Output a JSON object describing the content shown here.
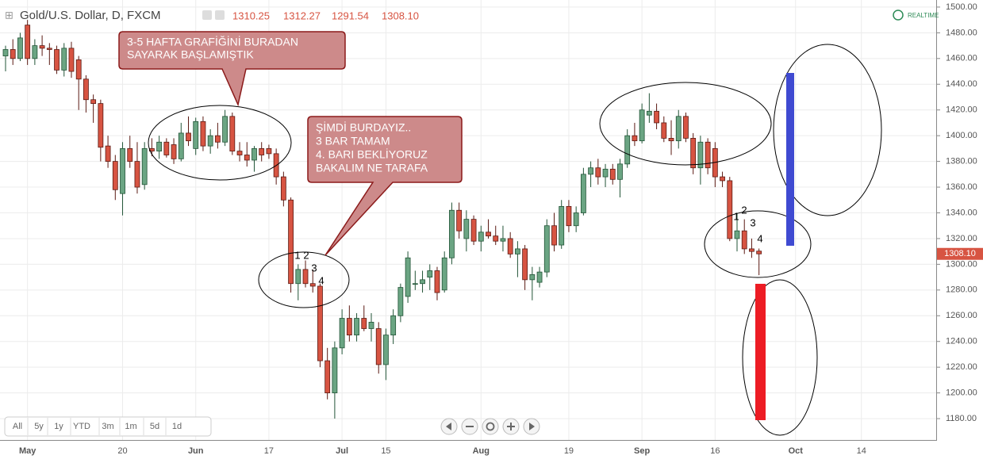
{
  "header": {
    "symbol": "Gold/U.S. Dollar, D, FXCM",
    "open": "1310.25",
    "high": "1312.27",
    "low": "1291.54",
    "close": "1308.10",
    "realtime": "REALTIME"
  },
  "chart_data": {
    "type": "candlestick",
    "up_color": "#6ba583",
    "down_color": "#d75442",
    "grid": true,
    "categories": [
      null,
      null,
      null,
      "May",
      null,
      null,
      null,
      null,
      null,
      null,
      null,
      null,
      null,
      null,
      null,
      null,
      "20",
      null,
      null,
      null,
      null,
      null,
      null,
      null,
      null,
      null,
      "Jun",
      null,
      null,
      null,
      null,
      null,
      null,
      null,
      null,
      null,
      "17",
      null,
      null,
      null,
      null,
      null,
      null,
      null,
      null,
      null,
      "Jul",
      null,
      null,
      null,
      null,
      null,
      "15",
      null,
      null,
      null,
      null,
      null,
      null,
      null,
      null,
      null,
      null,
      null,
      null,
      "Aug",
      null,
      null,
      null,
      null,
      null,
      null,
      null,
      null,
      null,
      null,
      null,
      "19",
      null,
      null,
      null,
      null,
      null,
      null,
      null,
      null,
      null,
      "Sep",
      null,
      null,
      null,
      null,
      null,
      null,
      null,
      null,
      null,
      "16",
      null,
      null,
      null,
      null,
      null,
      null,
      null,
      null,
      null,
      null,
      "Oct",
      null,
      null,
      null,
      null,
      null,
      null,
      null,
      null,
      "14",
      null,
      null,
      null,
      null,
      null,
      null
    ],
    "ohlc": [
      [
        1462,
        1470,
        1450,
        1467
      ],
      [
        1467,
        1475,
        1455,
        1460
      ],
      [
        1460,
        1480,
        1458,
        1476
      ],
      [
        1486,
        1490,
        1455,
        1460
      ],
      [
        1460,
        1475,
        1455,
        1470
      ],
      [
        1470,
        1478,
        1462,
        1468
      ],
      [
        1468,
        1472,
        1455,
        1467
      ],
      [
        1467,
        1470,
        1448,
        1451
      ],
      [
        1451,
        1472,
        1446,
        1468
      ],
      [
        1468,
        1473,
        1445,
        1450
      ],
      [
        1459,
        1462,
        1420,
        1444
      ],
      [
        1444,
        1447,
        1418,
        1428
      ],
      [
        1428,
        1432,
        1410,
        1425
      ],
      [
        1425,
        1428,
        1380,
        1391
      ],
      [
        1392,
        1400,
        1375,
        1380
      ],
      [
        1380,
        1385,
        1350,
        1358
      ],
      [
        1355,
        1395,
        1338,
        1390
      ],
      [
        1390,
        1400,
        1375,
        1380
      ],
      [
        1380,
        1395,
        1355,
        1360
      ],
      [
        1362,
        1395,
        1358,
        1390
      ],
      [
        1390,
        1398,
        1384,
        1388
      ],
      [
        1388,
        1400,
        1382,
        1395
      ],
      [
        1395,
        1398,
        1383,
        1385
      ],
      [
        1393,
        1398,
        1378,
        1382
      ],
      [
        1382,
        1410,
        1380,
        1402
      ],
      [
        1402,
        1415,
        1392,
        1396
      ],
      [
        1390,
        1414,
        1385,
        1411
      ],
      [
        1411,
        1415,
        1388,
        1392
      ],
      [
        1392,
        1405,
        1386,
        1400
      ],
      [
        1400,
        1410,
        1390,
        1395
      ],
      [
        1395,
        1420,
        1392,
        1415
      ],
      [
        1415,
        1418,
        1385,
        1388
      ],
      [
        1388,
        1395,
        1380,
        1385
      ],
      [
        1385,
        1395,
        1376,
        1381
      ],
      [
        1381,
        1392,
        1372,
        1390
      ],
      [
        1390,
        1395,
        1380,
        1385
      ],
      [
        1390,
        1393,
        1382,
        1386
      ],
      [
        1386,
        1390,
        1362,
        1368
      ],
      [
        1368,
        1372,
        1345,
        1350
      ],
      [
        1350,
        1352,
        1278,
        1285
      ],
      [
        1285,
        1300,
        1272,
        1296
      ],
      [
        1296,
        1303,
        1282,
        1285
      ],
      [
        1285,
        1296,
        1278,
        1283
      ],
      [
        1283,
        1285,
        1220,
        1225
      ],
      [
        1225,
        1235,
        1195,
        1200
      ],
      [
        1200,
        1240,
        1180,
        1235
      ],
      [
        1235,
        1265,
        1230,
        1258
      ],
      [
        1258,
        1268,
        1240,
        1245
      ],
      [
        1245,
        1262,
        1240,
        1258
      ],
      [
        1258,
        1268,
        1248,
        1250
      ],
      [
        1250,
        1262,
        1240,
        1255
      ],
      [
        1250,
        1255,
        1215,
        1222
      ],
      [
        1222,
        1250,
        1210,
        1245
      ],
      [
        1245,
        1265,
        1238,
        1260
      ],
      [
        1260,
        1285,
        1255,
        1282
      ],
      [
        1275,
        1310,
        1270,
        1305
      ],
      [
        1285,
        1295,
        1280,
        1285
      ],
      [
        1285,
        1295,
        1278,
        1288
      ],
      [
        1290,
        1300,
        1280,
        1295
      ],
      [
        1295,
        1298,
        1272,
        1278
      ],
      [
        1280,
        1310,
        1278,
        1305
      ],
      [
        1305,
        1348,
        1300,
        1342
      ],
      [
        1342,
        1348,
        1320,
        1326
      ],
      [
        1320,
        1342,
        1310,
        1335
      ],
      [
        1335,
        1338,
        1315,
        1318
      ],
      [
        1318,
        1330,
        1310,
        1325
      ],
      [
        1325,
        1335,
        1320,
        1322
      ],
      [
        1322,
        1330,
        1315,
        1318
      ],
      [
        1318,
        1330,
        1310,
        1320
      ],
      [
        1320,
        1325,
        1305,
        1308
      ],
      [
        1308,
        1318,
        1290,
        1312
      ],
      [
        1312,
        1315,
        1280,
        1288
      ],
      [
        1288,
        1298,
        1272,
        1292
      ],
      [
        1286,
        1298,
        1282,
        1294
      ],
      [
        1294,
        1335,
        1290,
        1330
      ],
      [
        1330,
        1340,
        1310,
        1315
      ],
      [
        1315,
        1350,
        1312,
        1345
      ],
      [
        1345,
        1350,
        1325,
        1330
      ],
      [
        1330,
        1345,
        1325,
        1340
      ],
      [
        1340,
        1375,
        1338,
        1370
      ],
      [
        1370,
        1380,
        1360,
        1375
      ],
      [
        1375,
        1382,
        1362,
        1368
      ],
      [
        1368,
        1378,
        1360,
        1374
      ],
      [
        1374,
        1378,
        1362,
        1366
      ],
      [
        1366,
        1382,
        1352,
        1378
      ],
      [
        1378,
        1405,
        1375,
        1400
      ],
      [
        1400,
        1410,
        1392,
        1396
      ],
      [
        1396,
        1425,
        1394,
        1420
      ],
      [
        1416,
        1433,
        1410,
        1419
      ],
      [
        1419,
        1425,
        1405,
        1410
      ],
      [
        1410,
        1415,
        1395,
        1398
      ],
      [
        1398,
        1412,
        1385,
        1396
      ],
      [
        1396,
        1420,
        1390,
        1415
      ],
      [
        1415,
        1418,
        1395,
        1398
      ],
      [
        1398,
        1402,
        1370,
        1375
      ],
      [
        1375,
        1400,
        1362,
        1395
      ],
      [
        1395,
        1398,
        1370,
        1375
      ],
      [
        1390,
        1395,
        1360,
        1368
      ],
      [
        1368,
        1372,
        1360,
        1365
      ],
      [
        1365,
        1368,
        1318,
        1320
      ],
      [
        1320,
        1340,
        1310,
        1326
      ],
      [
        1326,
        1335,
        1308,
        1312
      ],
      [
        1312,
        1320,
        1305,
        1310
      ],
      [
        1310.25,
        1312.27,
        1291.54,
        1308.1
      ]
    ],
    "ylim": [
      1163.4,
      1505.5
    ],
    "yticks": [
      {
        "value": 1180,
        "label": "1180.00"
      },
      {
        "value": 1200,
        "label": "1200.00"
      },
      {
        "value": 1220,
        "label": "1220.00"
      },
      {
        "value": 1240,
        "label": "1240.00"
      },
      {
        "value": 1260,
        "label": "1260.00"
      },
      {
        "value": 1280,
        "label": "1280.00"
      },
      {
        "value": 1300,
        "label": "1300.00"
      },
      {
        "value": 1320,
        "label": "1320.00"
      },
      {
        "value": 1340,
        "label": "1340.00"
      },
      {
        "value": 1360,
        "label": "1360.00"
      },
      {
        "value": 1380,
        "label": "1380.00"
      },
      {
        "value": 1400,
        "label": "1400.00"
      },
      {
        "value": 1420,
        "label": "1420.00"
      },
      {
        "value": 1440,
        "label": "1440.00"
      },
      {
        "value": 1460,
        "label": "1460.00"
      },
      {
        "value": 1480,
        "label": "1480.00"
      },
      {
        "value": 1500,
        "label": "1500.00"
      }
    ],
    "annotations": [
      "1",
      "2",
      "3",
      "4",
      "1",
      "2",
      "3",
      "4"
    ],
    "callouts": [
      [
        "3-5 HAFTA GRAFİĞİNİ BURADAN",
        " SAYARAK BAŞLAMIŞTIK"
      ],
      [
        "ŞİMDİ BURDAYIZ..",
        "3 BAR TAMAM",
        "4. BARI BEKLİYORUZ",
        "BAKALIM NE TARAFA"
      ]
    ]
  },
  "buttons": [
    "All",
    "5y",
    "1y",
    "YTD",
    "3m",
    "1m",
    "5d",
    "1d"
  ]
}
